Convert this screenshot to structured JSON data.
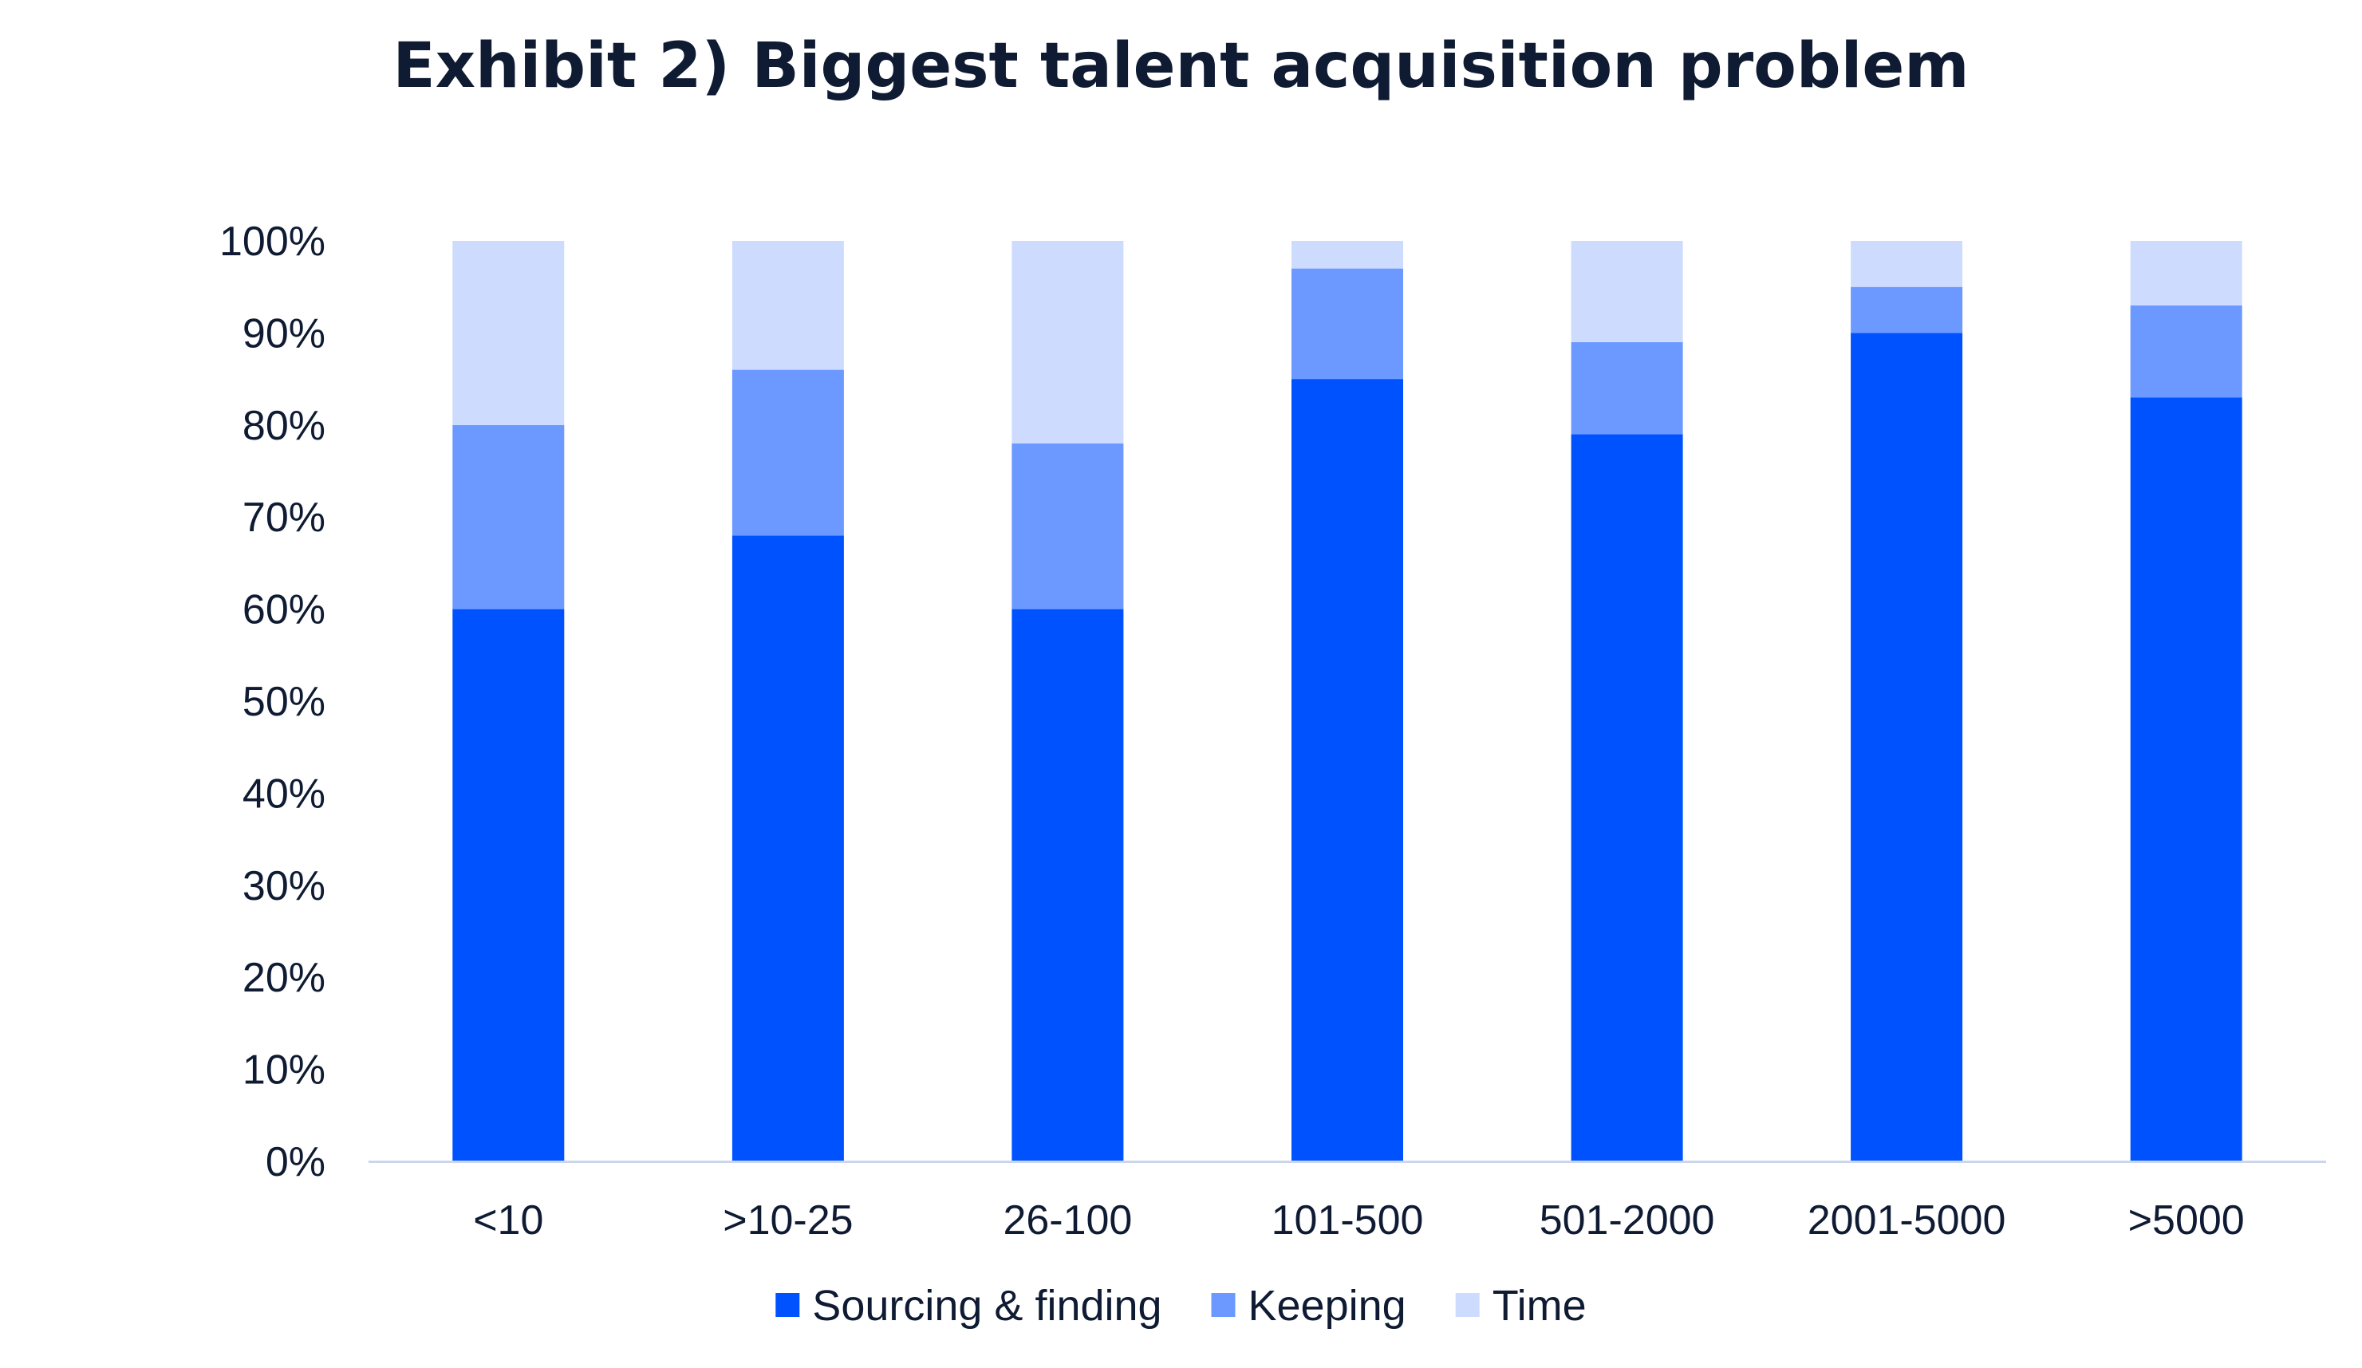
{
  "chart_data": {
    "type": "bar",
    "stacked": true,
    "title": "Exhibit 2) Biggest talent acquisition problem",
    "categories": [
      "<10",
      ">10-25",
      "26-100",
      "101-500",
      "501-2000",
      "2001-5000",
      ">5000"
    ],
    "series": [
      {
        "name": "Sourcing & finding",
        "color": "#0052ff",
        "values": [
          60,
          68,
          60,
          85,
          79,
          90,
          83
        ]
      },
      {
        "name": "Keeping",
        "color": "#6b99ff",
        "values": [
          20,
          18,
          18,
          12,
          10,
          5,
          10
        ]
      },
      {
        "name": "Time",
        "color": "#cddcfe",
        "values": [
          20,
          14,
          22,
          3,
          11,
          5,
          7
        ]
      }
    ],
    "ylim": [
      0,
      100
    ],
    "yticks": [
      "0%",
      "10%",
      "20%",
      "30%",
      "40%",
      "50%",
      "60%",
      "70%",
      "80%",
      "90%",
      "100%"
    ],
    "grid": false,
    "legend": "bottom",
    "axis_color": "#c9d6ee"
  }
}
